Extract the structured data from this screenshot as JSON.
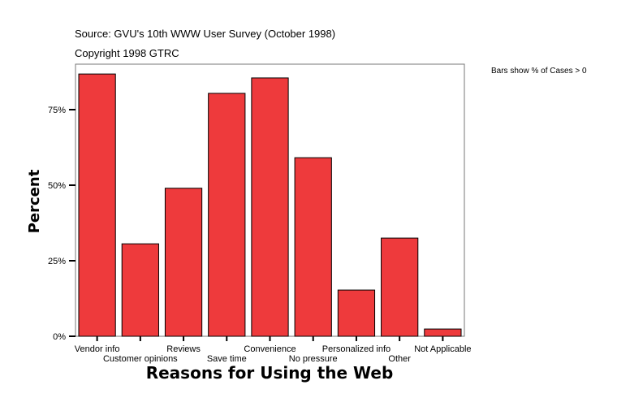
{
  "header": {
    "source": "Source: GVU's 10th WWW User Survey (October 1998)",
    "copyright": "Copyright 1998 GTRC",
    "note": "Bars show % of Cases > 0"
  },
  "colors": {
    "bar": "#ee3a3c",
    "outline": "#000000"
  },
  "chart_data": {
    "type": "bar",
    "title": "",
    "xlabel": "Reasons for Using the Web",
    "ylabel": "Percent",
    "categories": [
      "Vendor info",
      "Customer opinions",
      "Reviews",
      "Save time",
      "Convenience",
      "No pressure",
      "Personalized info",
      "Other",
      "Not Applicable"
    ],
    "values": [
      86.8,
      30.6,
      49.0,
      80.4,
      85.5,
      59.1,
      15.3,
      32.5,
      2.4
    ],
    "yticks": [
      0,
      25,
      50,
      75
    ],
    "ytick_labels": [
      "0%",
      "25%",
      "50%",
      "75%"
    ],
    "ylim": [
      0,
      90
    ],
    "grid": false
  }
}
